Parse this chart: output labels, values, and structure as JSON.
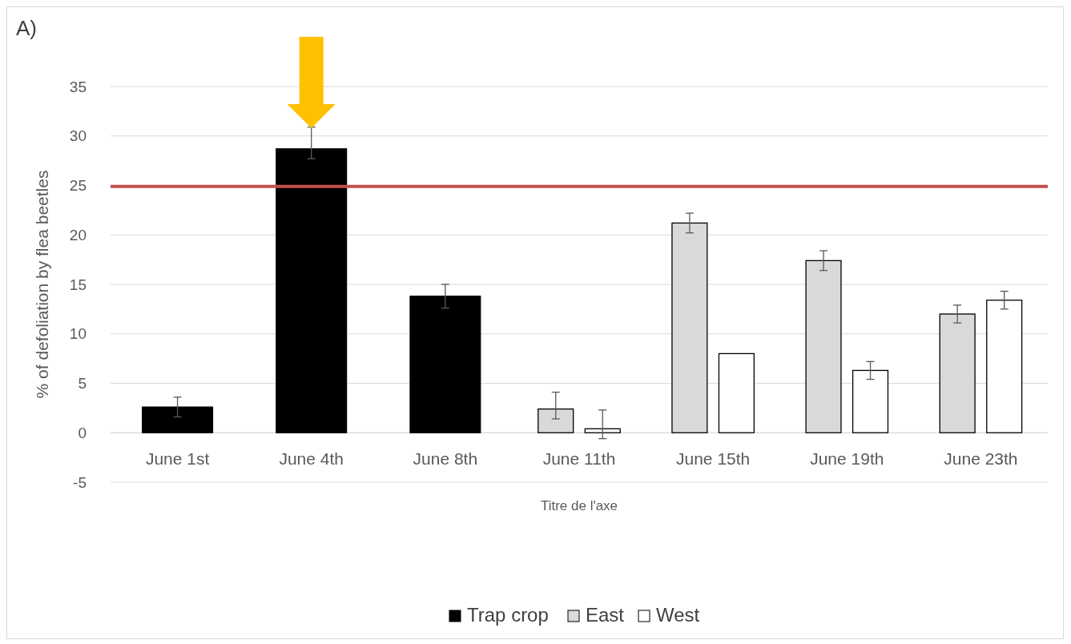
{
  "chart_data": {
    "type": "bar",
    "ylabel": "% of defoliation by flea beetles",
    "xlabel": "Titre de l'axe",
    "annotations": [
      "A)"
    ],
    "categories": [
      "June 1st",
      "June 4th",
      "June 8th",
      "June 11th",
      "June 15th",
      "June 19th",
      "June 23th"
    ],
    "series": [
      {
        "name": "Trap crop",
        "color": "#000000",
        "values": [
          2.6,
          28.7,
          13.8,
          null,
          null,
          null,
          null
        ],
        "errors": [
          1.0,
          [
            27.7,
            30.9
          ],
          1.2,
          null,
          null,
          null,
          null
        ]
      },
      {
        "name": "East",
        "color": "#d9d9d9",
        "values": [
          null,
          null,
          null,
          2.4,
          21.2,
          17.4,
          12.0
        ],
        "errors": [
          null,
          null,
          null,
          [
            1.4,
            4.1
          ],
          1.0,
          1.0,
          0.9
        ]
      },
      {
        "name": "West",
        "color": "#ffffff",
        "values": [
          null,
          null,
          null,
          0.4,
          8.0,
          6.3,
          13.4
        ],
        "errors": [
          null,
          null,
          null,
          [
            -0.6,
            2.3
          ],
          null,
          0.9,
          0.9
        ]
      }
    ],
    "ylim": [
      -5,
      35
    ],
    "yticks": [
      -5,
      0,
      5,
      10,
      15,
      20,
      25,
      30,
      35
    ],
    "grid": "y",
    "legend": "bottom",
    "ref_lines": [
      {
        "axis": "y",
        "value": 24.9,
        "label": null,
        "color": "#c0504d"
      }
    ]
  }
}
